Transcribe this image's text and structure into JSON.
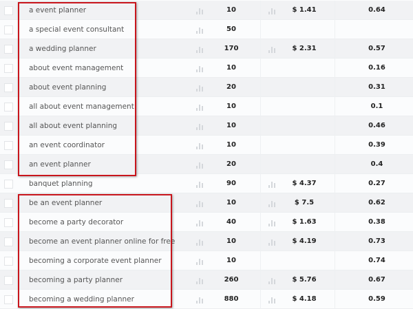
{
  "highlight_color": "#c8151c",
  "icons": {
    "trend": "bar-chart-icon",
    "checkbox": "checkbox"
  },
  "rows": [
    {
      "keyword": "a event planner",
      "volume": "10",
      "cpc": "$ 1.41",
      "competition": "0.64"
    },
    {
      "keyword": "a special event consultant",
      "volume": "50",
      "cpc": "",
      "competition": ""
    },
    {
      "keyword": "a wedding planner",
      "volume": "170",
      "cpc": "$ 2.31",
      "competition": "0.57"
    },
    {
      "keyword": "about event management",
      "volume": "10",
      "cpc": "",
      "competition": "0.16"
    },
    {
      "keyword": "about event planning",
      "volume": "20",
      "cpc": "",
      "competition": "0.31"
    },
    {
      "keyword": "all about event management",
      "volume": "10",
      "cpc": "",
      "competition": "0.1"
    },
    {
      "keyword": "all about event planning",
      "volume": "10",
      "cpc": "",
      "competition": "0.46"
    },
    {
      "keyword": "an event coordinator",
      "volume": "10",
      "cpc": "",
      "competition": "0.39"
    },
    {
      "keyword": "an event planner",
      "volume": "20",
      "cpc": "",
      "competition": "0.4"
    },
    {
      "keyword": "banquet planning",
      "volume": "90",
      "cpc": "$ 4.37",
      "competition": "0.27"
    },
    {
      "keyword": "be an event planner",
      "volume": "10",
      "cpc": "$ 7.5",
      "competition": "0.62"
    },
    {
      "keyword": "become a party decorator",
      "volume": "40",
      "cpc": "$ 1.63",
      "competition": "0.38"
    },
    {
      "keyword": "become an event planner online for free",
      "volume": "10",
      "cpc": "$ 4.19",
      "competition": "0.73"
    },
    {
      "keyword": "becoming a corporate event planner",
      "volume": "10",
      "cpc": "",
      "competition": "0.74"
    },
    {
      "keyword": "becoming a party planner",
      "volume": "260",
      "cpc": "$ 5.76",
      "competition": "0.67"
    },
    {
      "keyword": "becoming a wedding planner",
      "volume": "880",
      "cpc": "$ 4.18",
      "competition": "0.59"
    }
  ]
}
